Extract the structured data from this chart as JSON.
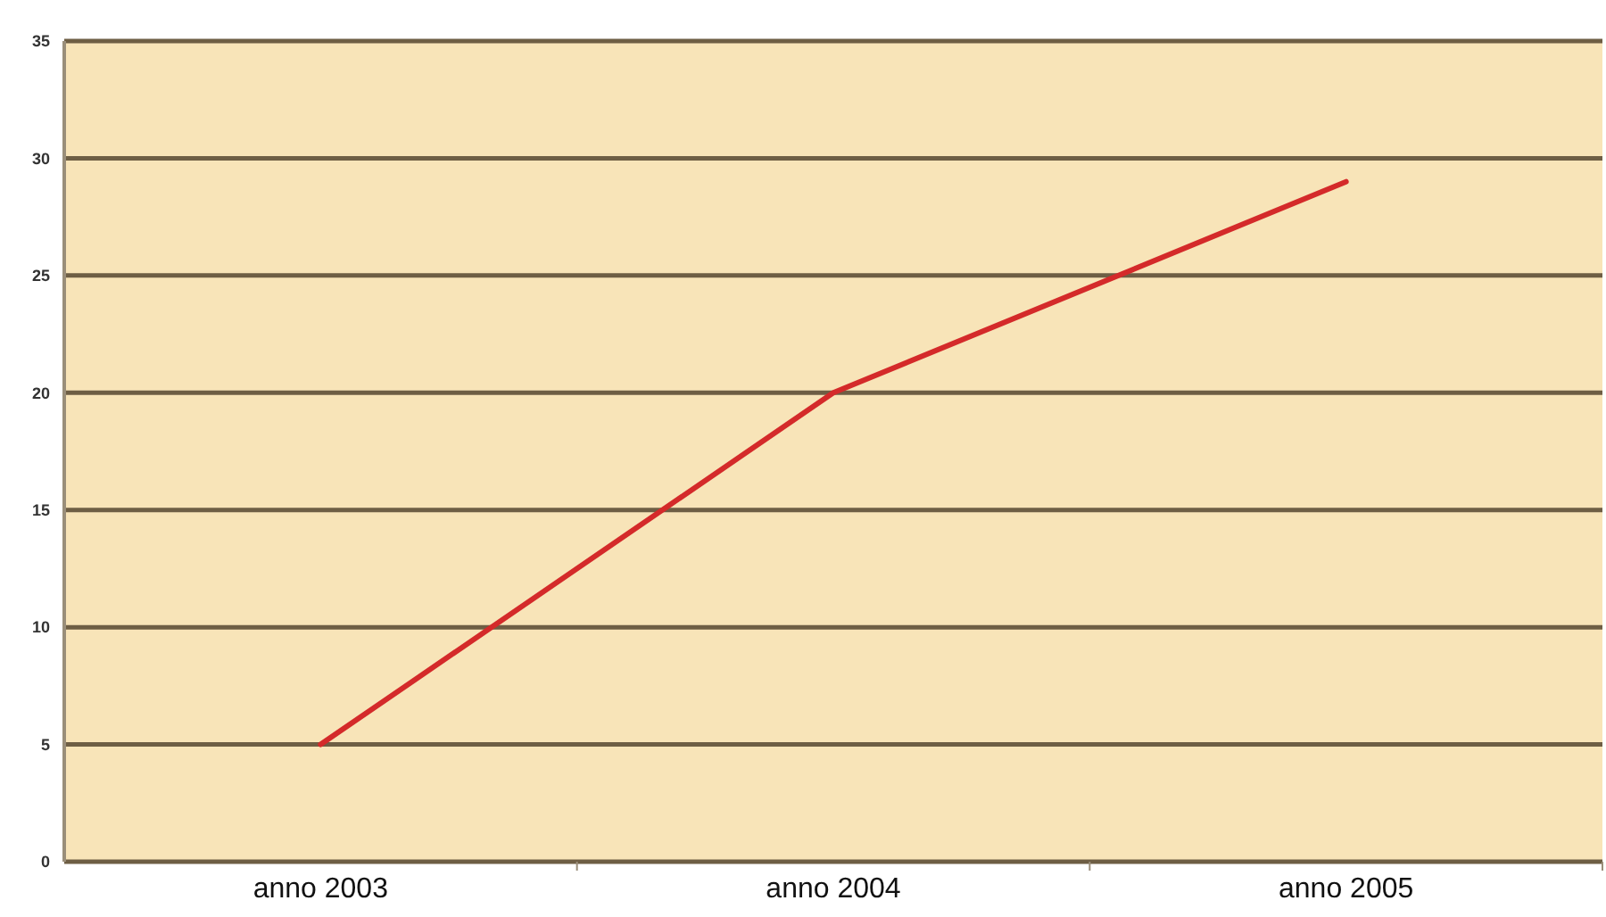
{
  "chart_data": {
    "type": "line",
    "categories": [
      "anno 2003",
      "anno 2004",
      "anno 2005"
    ],
    "series": [
      {
        "color": "#d42a2a",
        "values": [
          5,
          20,
          29
        ]
      }
    ],
    "ylim": [
      0,
      35
    ],
    "yticks": [
      0,
      5,
      10,
      15,
      20,
      25,
      30,
      35
    ],
    "grid": "y",
    "marker": "none",
    "line_style": "solid"
  }
}
